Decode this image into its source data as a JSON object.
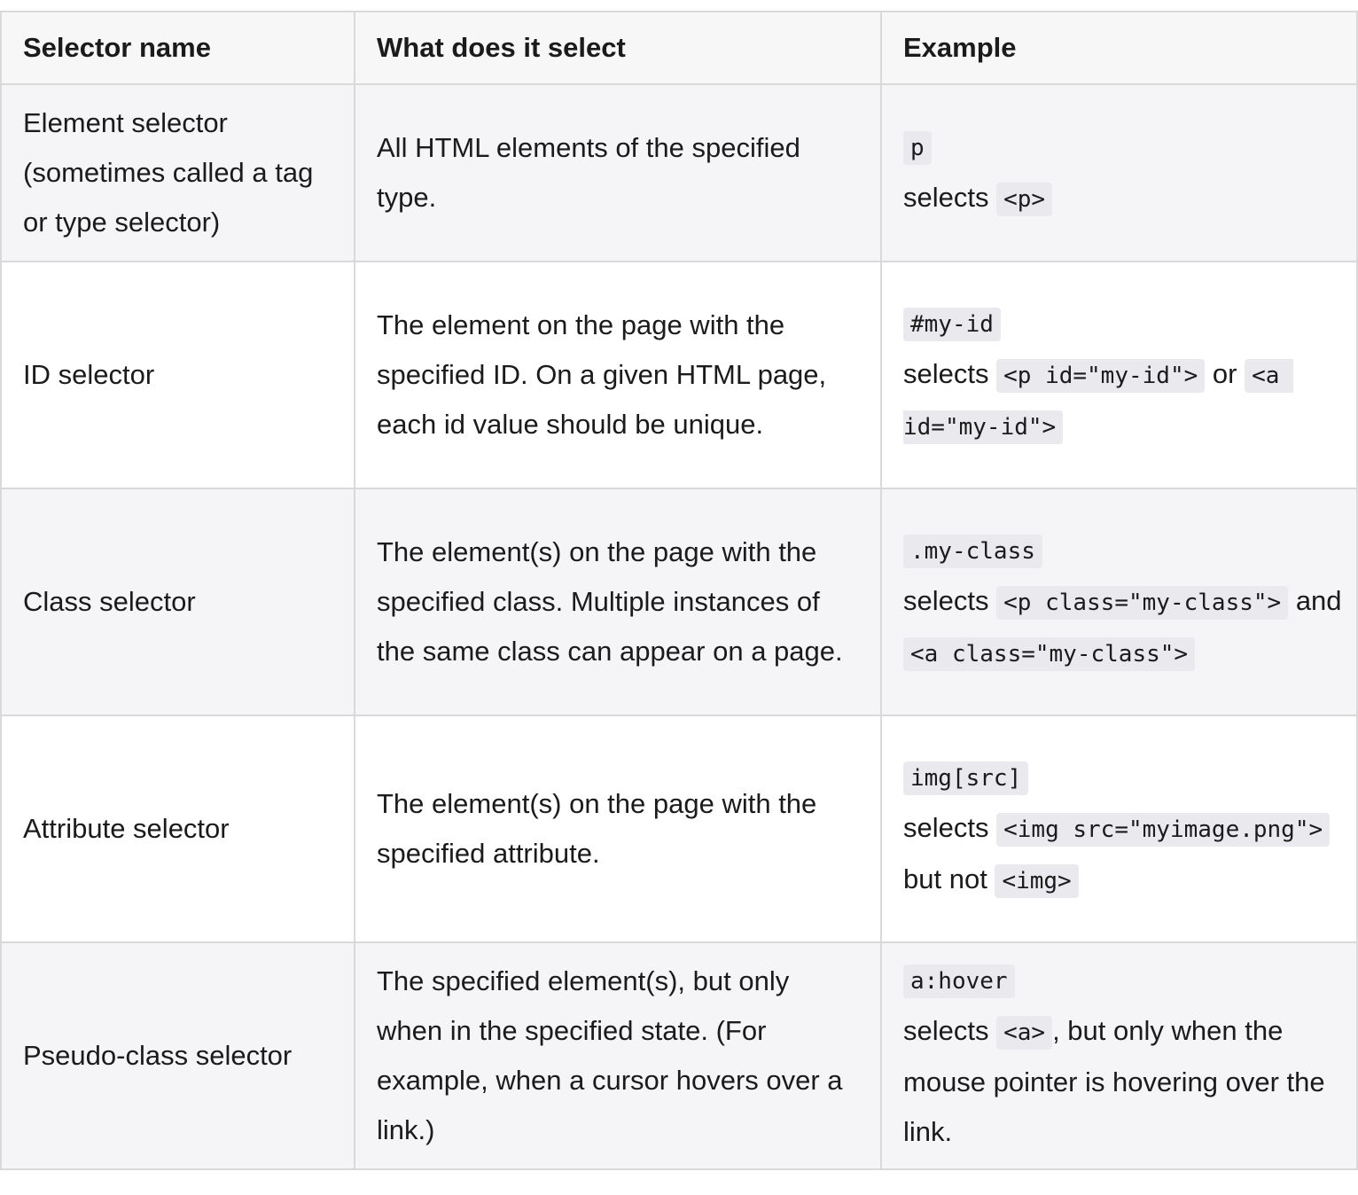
{
  "headers": {
    "selector_name": "Selector name",
    "what": "What does it select",
    "example": "Example"
  },
  "rows": [
    {
      "name": "Element selector (sometimes called a tag or type selector)",
      "desc": "All HTML elements of the specified type.",
      "selector": "p",
      "selects_word": "selects",
      "code1": "<p>",
      "joiner": "",
      "code2": "",
      "tail": ""
    },
    {
      "name": "ID selector",
      "desc": "The element on the page with the specified ID. On a given HTML page, each id value should be unique.",
      "selector": "#my-id",
      "selects_word": "selects",
      "code1": "<p id=\"my-id\">",
      "joiner": "or",
      "code2": "<a id=\"my-id\">",
      "tail": ""
    },
    {
      "name": "Class selector",
      "desc": "The element(s) on the page with the specified class. Multiple instances of the same class can appear on a page.",
      "selector": ".my-class",
      "selects_word": "selects",
      "code1": "<p class=\"my-class\">",
      "joiner": "and",
      "code2": "<a class=\"my-class\">",
      "tail": ""
    },
    {
      "name": "Attribute selector",
      "desc": "The element(s) on the page with the specified attribute.",
      "selector": "img[src]",
      "selects_word": "selects",
      "code1": "<img src=\"myimage.png\">",
      "joiner": "but not",
      "code2": "<img>",
      "tail": ""
    },
    {
      "name": "Pseudo-class selector",
      "desc": "The specified element(s), but only when in the specified state. (For example, when a cursor hovers over a link.)",
      "selector": "a:hover",
      "selects_word": "selects",
      "code1": "<a>",
      "joiner": "",
      "code2": "",
      "tail": ", but only when the mouse pointer is hovering over the link."
    }
  ]
}
